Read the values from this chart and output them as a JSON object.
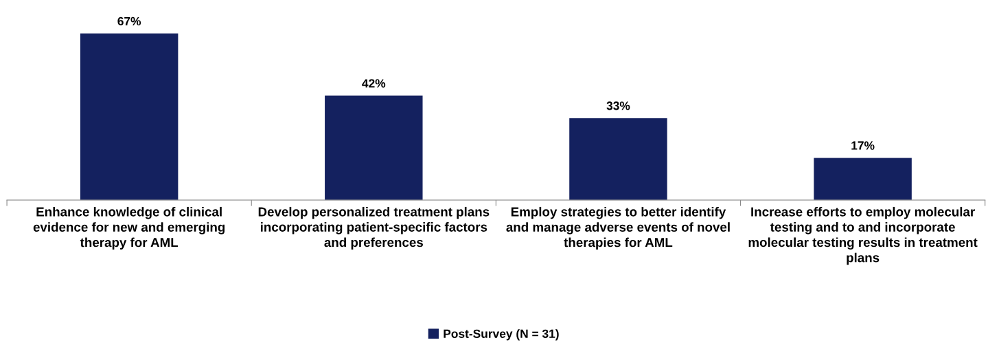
{
  "chart_data": {
    "type": "bar",
    "categories": [
      "Enhance knowledge of clinical evidence for new and emerging therapy for AML",
      "Develop personalized treatment plans incorporating patient-specific factors and preferences",
      "Employ strategies to better identify and manage adverse events of novel therapies for AML",
      "Increase efforts to employ molecular testing and to and incorporate molecular testing results in treatment plans"
    ],
    "series": [
      {
        "name": "Post-Survey (N = 31)",
        "color": "#14215f",
        "values": [
          67,
          42,
          33,
          17
        ],
        "value_labels": [
          "67%",
          "42%",
          "33%",
          "17%"
        ]
      }
    ],
    "legend": "bottom",
    "grid": false
  }
}
